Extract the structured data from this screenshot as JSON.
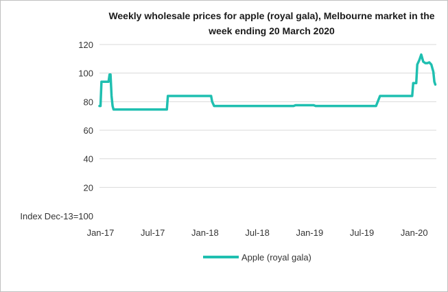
{
  "chart_data": {
    "type": "line",
    "title_lines": [
      "Weekly wholesale prices for apple (royal gala), Melbourne market in the",
      "week ending 20 March 2020"
    ],
    "ylabel": "Index Dec-13=100",
    "ylim": [
      0,
      120
    ],
    "y_ticks": [
      20,
      40,
      60,
      80,
      100,
      120
    ],
    "x_ticks": [
      {
        "label": "Jan-17",
        "t": 0
      },
      {
        "label": "Jul-17",
        "t": 26
      },
      {
        "label": "Jan-18",
        "t": 52
      },
      {
        "label": "Jul-18",
        "t": 78
      },
      {
        "label": "Jan-19",
        "t": 104
      },
      {
        "label": "Jul-19",
        "t": 130
      },
      {
        "label": "Jan-20",
        "t": 156
      }
    ],
    "xlim": [
      -0.5,
      167
    ],
    "grid": true,
    "legend_position": "bottom",
    "series": [
      {
        "name": "Apple (royal gala)",
        "color": "#1fbfb0",
        "points": [
          [
            -0.5,
            77
          ],
          [
            0,
            77
          ],
          [
            0.5,
            94
          ],
          [
            3,
            94
          ],
          [
            4,
            94
          ],
          [
            4.5,
            99
          ],
          [
            5,
            99
          ],
          [
            5.5,
            84
          ],
          [
            6,
            77
          ],
          [
            6.5,
            74.5
          ],
          [
            10,
            74.5
          ],
          [
            20,
            74.5
          ],
          [
            33,
            74.5
          ],
          [
            33.5,
            84
          ],
          [
            35,
            84
          ],
          [
            50,
            84
          ],
          [
            55,
            84
          ],
          [
            55.5,
            80
          ],
          [
            56.5,
            77
          ],
          [
            70,
            77
          ],
          [
            80,
            77
          ],
          [
            90,
            77
          ],
          [
            96,
            77
          ],
          [
            97,
            77.5
          ],
          [
            103,
            77.5
          ],
          [
            106,
            77.5
          ],
          [
            107,
            77
          ],
          [
            120,
            77
          ],
          [
            130,
            77
          ],
          [
            137,
            77
          ],
          [
            139,
            84
          ],
          [
            145,
            84
          ],
          [
            155,
            84
          ],
          [
            155.5,
            93
          ],
          [
            156,
            93
          ],
          [
            157,
            93
          ],
          [
            157.5,
            106
          ],
          [
            158.5,
            109
          ],
          [
            159.5,
            113
          ],
          [
            160.5,
            108
          ],
          [
            161.5,
            107
          ],
          [
            162.5,
            107
          ],
          [
            163.5,
            107.5
          ],
          [
            164.5,
            106
          ],
          [
            165.5,
            101
          ],
          [
            166,
            94
          ],
          [
            166.5,
            92
          ]
        ]
      }
    ]
  }
}
